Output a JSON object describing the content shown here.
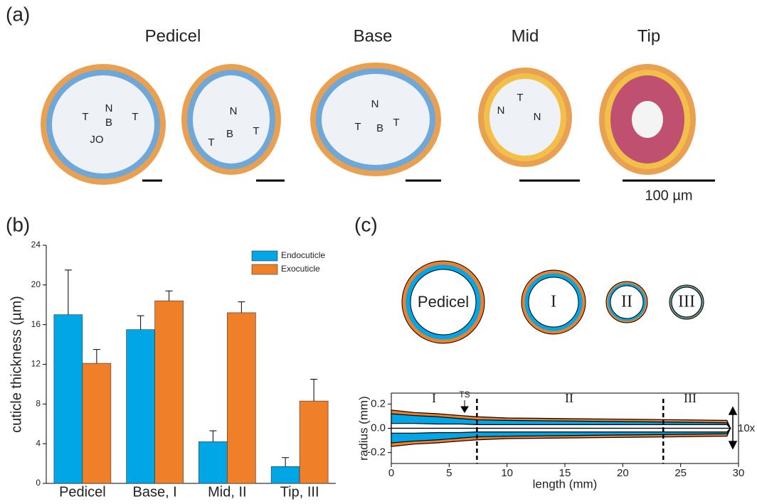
{
  "panels": {
    "a": {
      "label": "(a)",
      "titles": [
        "Pedicel",
        "Base",
        "Mid",
        "Tip"
      ],
      "scale_label": "100 µm",
      "annotations": [
        [
          "T",
          "N",
          "B",
          "T",
          "JO"
        ],
        [
          "N",
          "B",
          "T",
          "T"
        ],
        [
          "N",
          "T",
          "B",
          "T"
        ],
        [
          "N",
          "T",
          "N"
        ]
      ]
    },
    "b": {
      "label": "(b)"
    },
    "c": {
      "label": "(c)",
      "sections": [
        "Pedicel",
        "I",
        "II",
        "III"
      ]
    }
  },
  "chart_data": [
    {
      "type": "bar",
      "ylabel": "cuticle thickness (µm)",
      "categories": [
        "Pedicel",
        "Base, I",
        "Mid, II",
        "Tip, III"
      ],
      "series": [
        {
          "name": "Endocuticle",
          "color": "#00a6e6",
          "values": [
            17,
            15.5,
            4.2,
            1.7
          ],
          "errors": [
            4.5,
            1.4,
            1.1,
            0.9
          ]
        },
        {
          "name": "Exocuticle",
          "color": "#f07f2a",
          "values": [
            12.1,
            18.4,
            17.2,
            8.3
          ],
          "errors": [
            1.4,
            1.0,
            1.1,
            2.2
          ]
        }
      ],
      "ylim": [
        0,
        24
      ],
      "yticks": [
        0,
        4,
        8,
        12,
        16,
        20,
        24
      ],
      "legend": "top-right"
    },
    {
      "type": "line",
      "xlabel": "length (mm)",
      "ylabel": "radius (mm)",
      "x": [
        0,
        2,
        4,
        6,
        7.4,
        10,
        15,
        20,
        25,
        29,
        29.3
      ],
      "series": [
        {
          "color": "#f07f2a",
          "values": [
            0.15,
            0.13,
            0.12,
            0.105,
            0.095,
            0.085,
            0.08,
            0.075,
            0.07,
            0.065,
            0
          ]
        },
        {
          "color": "#00a6e6",
          "values": [
            0.12,
            0.105,
            0.095,
            0.08,
            0.07,
            0.065,
            0.06,
            0.055,
            0.05,
            0.045,
            0
          ]
        },
        {
          "color": "#ffffff",
          "values": [
            0.04,
            0.04,
            0.035,
            0.035,
            0.03,
            0.03,
            0.03,
            0.03,
            0.03,
            0.03,
            0
          ]
        }
      ],
      "xlim": [
        0,
        30
      ],
      "xticks": [
        0,
        5,
        10,
        15,
        20,
        25,
        30
      ],
      "ylim": [
        -0.29,
        0.29
      ],
      "yticks": [
        -0.2,
        {
          "value": 0,
          "label": "0.0"
        },
        0.2
      ],
      "vlines": [
        7.4,
        23.5
      ],
      "zones": [
        "I",
        "II",
        "III"
      ],
      "marker": "TS",
      "scale_note": "10x"
    }
  ]
}
